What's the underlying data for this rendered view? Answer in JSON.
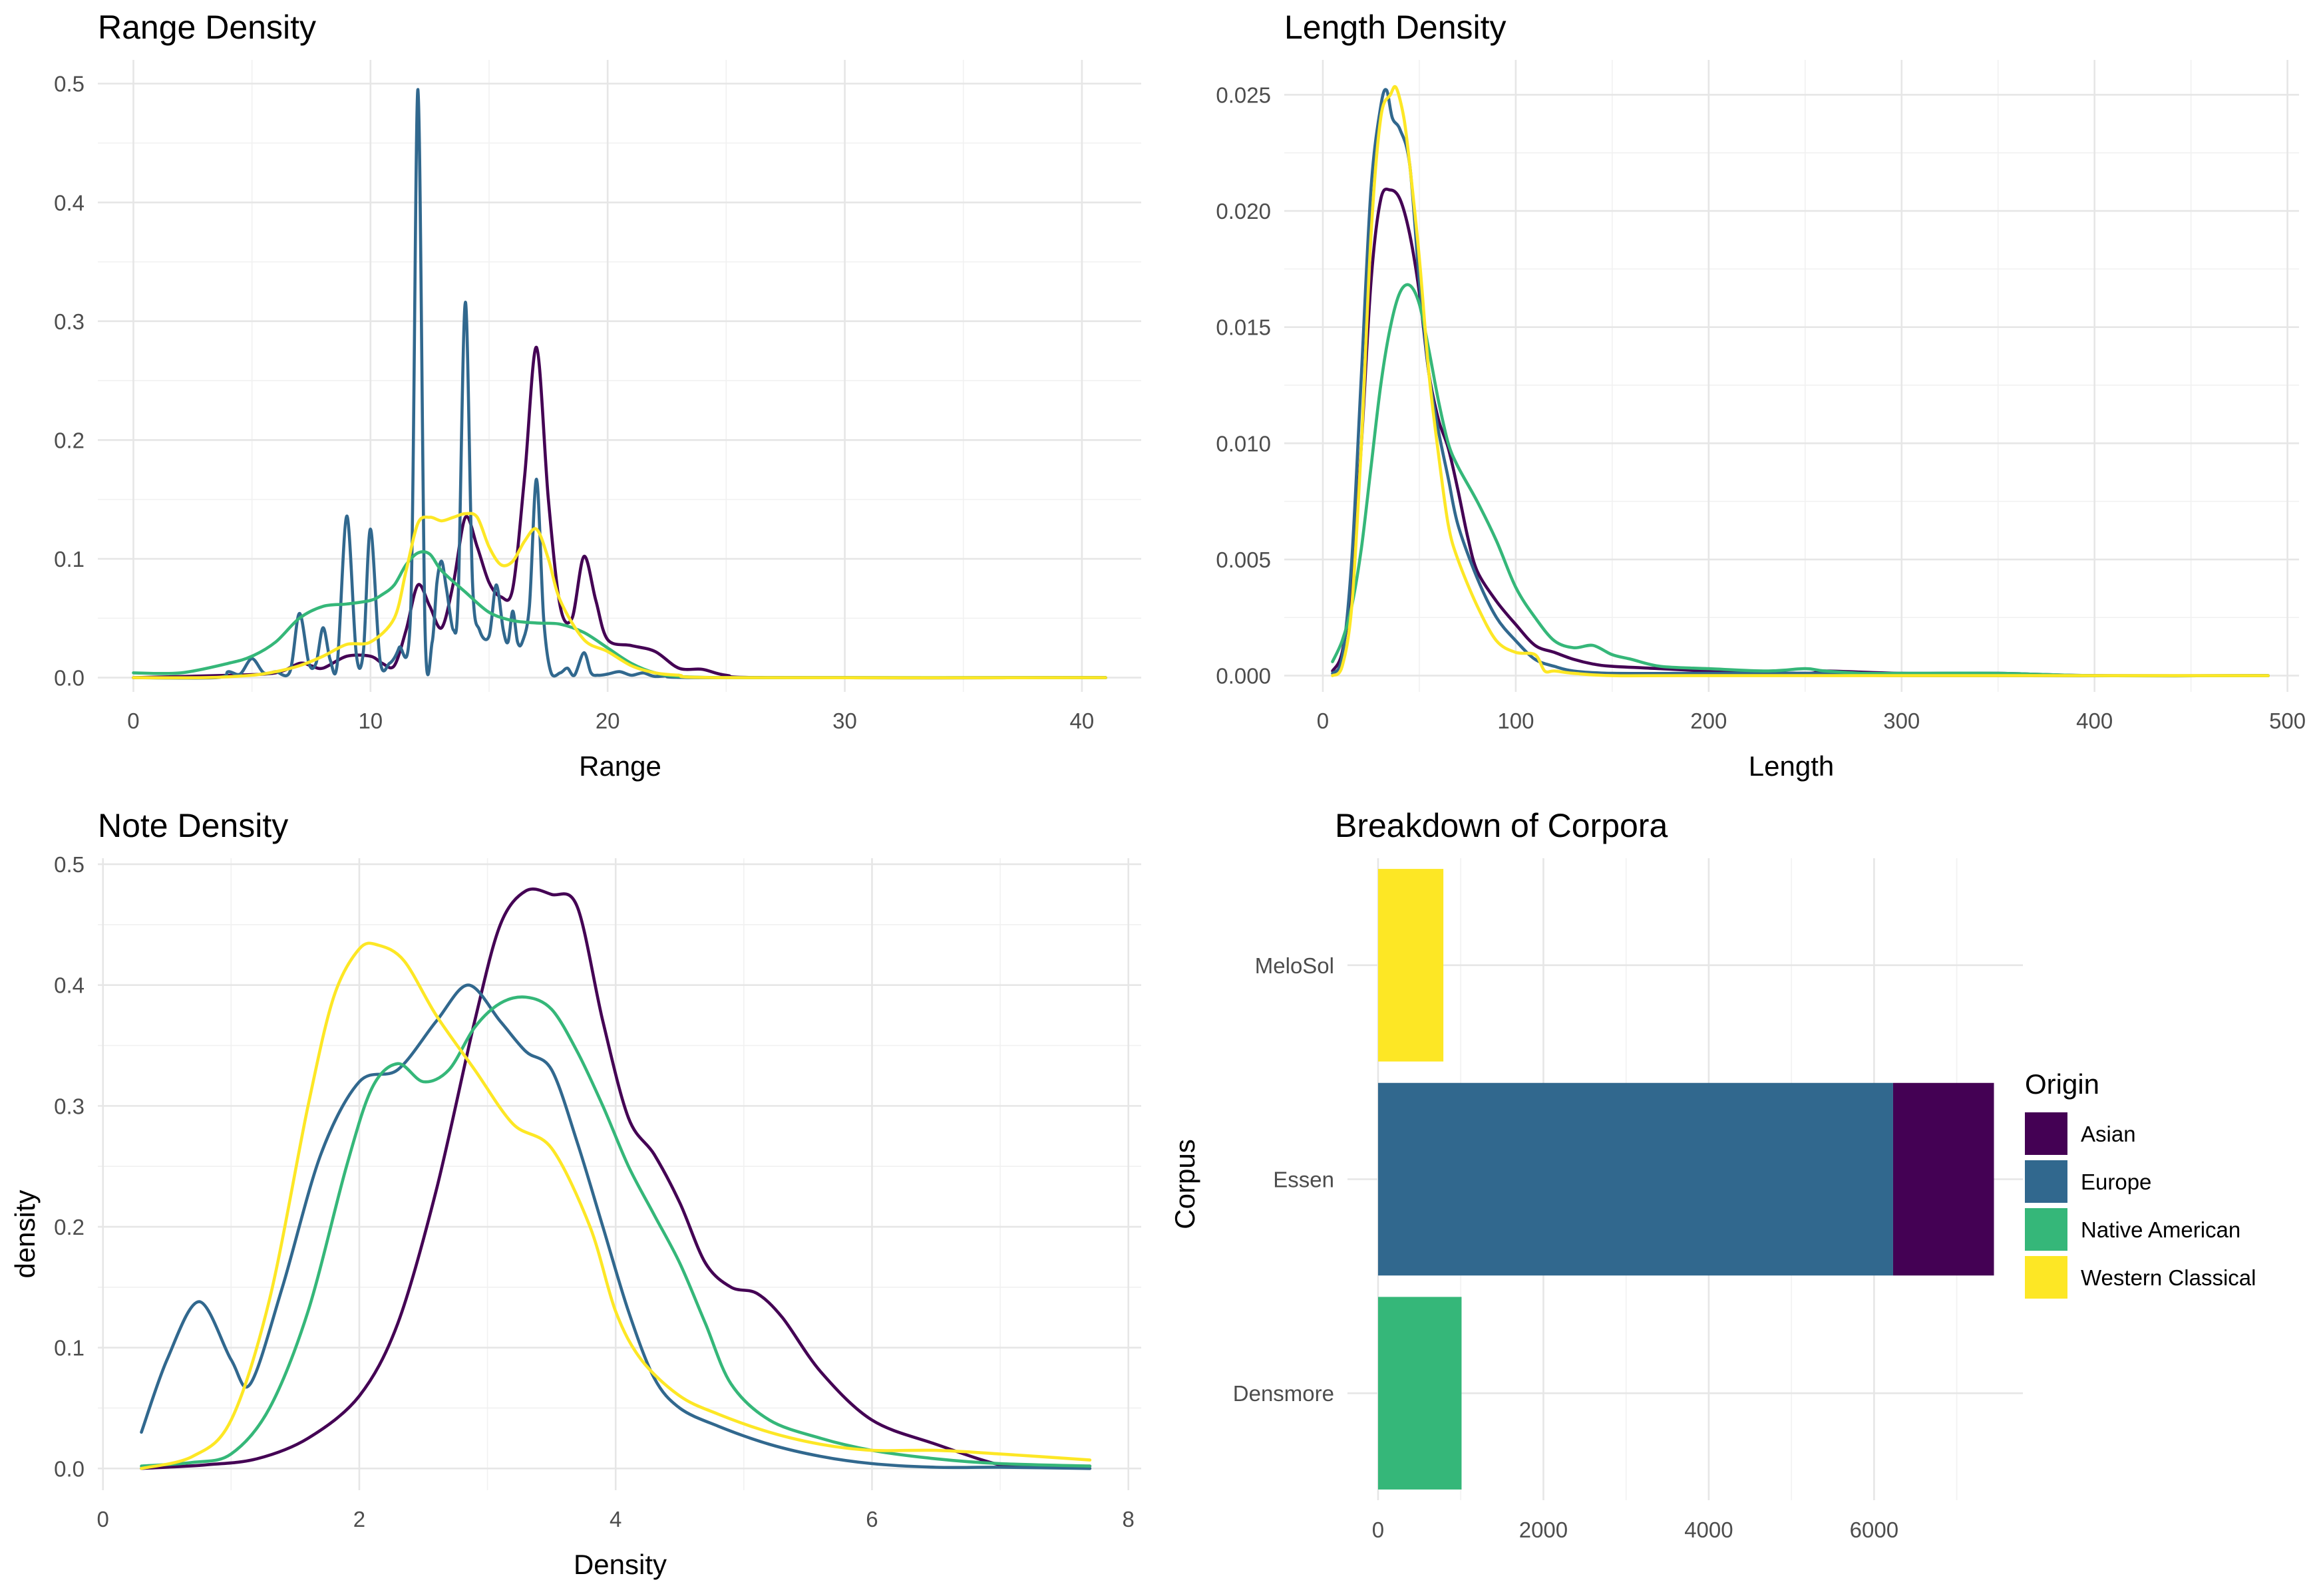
{
  "colors": {
    "Asian": "#440154",
    "Europe": "#31688e",
    "Native American": "#35b779",
    "Western Classical": "#fde725"
  },
  "chart_data": [
    {
      "type": "line",
      "title": "Range Density",
      "xlabel": "Range",
      "ylabel": "",
      "xlim": [
        -1.5,
        42.5
      ],
      "ylim": [
        -0.012,
        0.52
      ],
      "xticks": [
        0,
        10,
        20,
        30,
        40
      ],
      "yticks": [
        0.0,
        0.1,
        0.2,
        0.3,
        0.4,
        0.5
      ],
      "xtick_labels": [
        "0",
        "10",
        "20",
        "30",
        "40"
      ],
      "ytick_labels": [
        "0.0",
        "0.1",
        "0.2",
        "0.3",
        "0.4",
        "0.5"
      ],
      "grid": true,
      "series": [
        {
          "name": "Asian",
          "x": [
            0,
            4,
            6,
            7,
            7.5,
            8,
            9,
            10,
            10.5,
            11,
            11.5,
            12,
            12.5,
            13,
            13.5,
            14,
            14.5,
            15,
            15.5,
            16,
            16.5,
            17,
            17.5,
            18,
            18.5,
            19,
            19.5,
            20,
            21,
            22,
            23,
            24,
            25,
            27,
            41
          ],
          "y": [
            0,
            0.002,
            0.004,
            0.012,
            0.01,
            0.008,
            0.018,
            0.018,
            0.012,
            0.01,
            0.04,
            0.078,
            0.06,
            0.042,
            0.08,
            0.135,
            0.11,
            0.08,
            0.068,
            0.075,
            0.17,
            0.278,
            0.15,
            0.06,
            0.05,
            0.102,
            0.065,
            0.032,
            0.027,
            0.022,
            0.008,
            0.007,
            0.002,
            0,
            0
          ]
        },
        {
          "name": "Europe",
          "x": [
            0,
            3.5,
            4,
            4.5,
            5,
            5.5,
            6,
            6.6,
            7,
            7.4,
            7.7,
            8,
            8.3,
            8.6,
            9,
            9.4,
            9.7,
            10,
            10.4,
            10.8,
            11.2,
            11.7,
            12,
            12.3,
            12.6,
            12.8,
            13,
            13.2,
            13.5,
            13.7,
            14,
            14.3,
            14.6,
            15,
            15.3,
            15.6,
            15.8,
            16,
            16.2,
            16.4,
            16.7,
            17,
            17.3,
            17.6,
            18,
            18.3,
            18.6,
            19,
            19.3,
            19.6,
            20,
            20.5,
            21,
            21.5,
            22,
            23,
            24,
            41
          ],
          "y": [
            0,
            0,
            0.005,
            0.003,
            0.016,
            0.004,
            0.005,
            0.005,
            0.054,
            0.012,
            0.012,
            0.042,
            0.015,
            0.012,
            0.136,
            0.02,
            0.022,
            0.125,
            0.015,
            0.012,
            0.025,
            0.06,
            0.495,
            0.04,
            0.03,
            0.08,
            0.098,
            0.075,
            0.04,
            0.07,
            0.316,
            0.08,
            0.04,
            0.035,
            0.078,
            0.04,
            0.03,
            0.056,
            0.03,
            0.03,
            0.06,
            0.167,
            0.05,
            0.005,
            0.004,
            0.008,
            0.002,
            0.021,
            0.004,
            0.002,
            0.003,
            0.005,
            0.002,
            0.004,
            0.001,
            0.002,
            0,
            0
          ]
        },
        {
          "name": "Native American",
          "x": [
            0,
            2,
            4,
            5,
            6,
            7,
            8,
            9,
            10,
            10.5,
            11,
            11.5,
            12,
            12.5,
            13,
            14,
            15,
            16,
            17,
            18,
            19,
            20,
            21,
            22,
            23,
            25,
            30,
            41
          ],
          "y": [
            0.004,
            0.004,
            0.012,
            0.018,
            0.03,
            0.05,
            0.06,
            0.062,
            0.065,
            0.07,
            0.078,
            0.095,
            0.105,
            0.104,
            0.09,
            0.072,
            0.055,
            0.048,
            0.046,
            0.045,
            0.038,
            0.025,
            0.012,
            0.004,
            0.001,
            0,
            0,
            0
          ]
        },
        {
          "name": "Western Classical",
          "x": [
            0,
            3,
            5,
            6,
            7,
            8,
            9,
            10,
            11,
            11.5,
            12,
            12.5,
            13,
            13.5,
            14,
            14.5,
            15,
            15.5,
            16,
            16.5,
            17,
            17.5,
            18,
            19,
            20,
            21,
            22,
            23,
            25,
            41
          ],
          "y": [
            0,
            0,
            0.002,
            0.005,
            0.01,
            0.018,
            0.028,
            0.03,
            0.05,
            0.09,
            0.13,
            0.135,
            0.132,
            0.135,
            0.138,
            0.135,
            0.11,
            0.095,
            0.098,
            0.115,
            0.125,
            0.1,
            0.065,
            0.032,
            0.022,
            0.01,
            0.004,
            0.002,
            0,
            0
          ]
        }
      ]
    },
    {
      "type": "line",
      "title": "Length Density",
      "xlabel": "Length",
      "ylabel": "",
      "xlim": [
        -20,
        506
      ],
      "ylim": [
        -0.0007,
        0.0265
      ],
      "xticks": [
        0,
        100,
        200,
        300,
        400,
        500
      ],
      "yticks": [
        0.0,
        0.005,
        0.01,
        0.015,
        0.02,
        0.025
      ],
      "xtick_labels": [
        "0",
        "100",
        "200",
        "300",
        "400",
        "500"
      ],
      "ytick_labels": [
        "0.000",
        "0.005",
        "0.010",
        "0.015",
        "0.020",
        "0.025"
      ],
      "grid": true,
      "series": [
        {
          "name": "Asian",
          "x": [
            5,
            10,
            15,
            20,
            25,
            30,
            35,
            40,
            45,
            50,
            55,
            60,
            65,
            70,
            75,
            80,
            90,
            100,
            110,
            120,
            130,
            140,
            150,
            175,
            200,
            250,
            260,
            300,
            350,
            400,
            490
          ],
          "y": [
            0.0002,
            0.001,
            0.004,
            0.01,
            0.017,
            0.0205,
            0.0209,
            0.0205,
            0.019,
            0.0165,
            0.013,
            0.011,
            0.0098,
            0.008,
            0.006,
            0.0045,
            0.0032,
            0.0022,
            0.0013,
            0.001,
            0.0007,
            0.0005,
            0.0004,
            0.0003,
            0.0002,
            0.0001,
            0.0002,
            0.0001,
            0.0001,
            0,
            0
          ]
        },
        {
          "name": "Europe",
          "x": [
            5,
            10,
            15,
            20,
            25,
            30,
            33,
            36,
            40,
            45,
            50,
            55,
            60,
            65,
            70,
            80,
            90,
            100,
            110,
            120,
            130,
            150,
            200,
            250,
            300,
            490
          ],
          "y": [
            0.0001,
            0.0008,
            0.005,
            0.013,
            0.021,
            0.0245,
            0.0252,
            0.024,
            0.0235,
            0.022,
            0.017,
            0.013,
            0.0105,
            0.0085,
            0.0065,
            0.0042,
            0.0025,
            0.0015,
            0.0007,
            0.0004,
            0.0002,
            0.0001,
            0.0001,
            0.0001,
            0,
            0
          ]
        },
        {
          "name": "Native American",
          "x": [
            5,
            10,
            15,
            20,
            25,
            30,
            35,
            40,
            45,
            50,
            55,
            60,
            65,
            70,
            80,
            90,
            100,
            110,
            120,
            130,
            140,
            150,
            160,
            175,
            200,
            230,
            250,
            260,
            280,
            300,
            350,
            400,
            490
          ],
          "y": [
            0.0006,
            0.0015,
            0.003,
            0.0055,
            0.009,
            0.0125,
            0.015,
            0.0165,
            0.0168,
            0.016,
            0.014,
            0.0118,
            0.01,
            0.009,
            0.0075,
            0.0058,
            0.0038,
            0.0025,
            0.0015,
            0.0012,
            0.0013,
            0.0009,
            0.0007,
            0.0004,
            0.0003,
            0.0002,
            0.0003,
            0.0002,
            0.0001,
            0.0001,
            0.0001,
            0,
            0
          ]
        },
        {
          "name": "Western Classical",
          "x": [
            5,
            10,
            15,
            20,
            25,
            30,
            35,
            38,
            42,
            45,
            50,
            55,
            60,
            65,
            70,
            80,
            90,
            100,
            110,
            115,
            120,
            130,
            150,
            200,
            490
          ],
          "y": [
            0,
            0.0004,
            0.003,
            0.01,
            0.019,
            0.024,
            0.025,
            0.0253,
            0.024,
            0.022,
            0.018,
            0.013,
            0.0095,
            0.0065,
            0.005,
            0.003,
            0.0015,
            0.001,
            0.0009,
            0.0002,
            0.0002,
            0.0001,
            0,
            0,
            0
          ]
        }
      ]
    },
    {
      "type": "line",
      "title": "Note Density",
      "xlabel": "Density",
      "ylabel": "density",
      "xlim": [
        -0.04,
        8.1
      ],
      "ylim": [
        -0.018,
        0.505
      ],
      "xticks": [
        0,
        2,
        4,
        6,
        8
      ],
      "yticks": [
        0.0,
        0.1,
        0.2,
        0.3,
        0.4,
        0.5
      ],
      "xtick_labels": [
        "0",
        "2",
        "4",
        "6",
        "8"
      ],
      "ytick_labels": [
        "0.0",
        "0.1",
        "0.2",
        "0.3",
        "0.4",
        "0.5"
      ],
      "grid": true,
      "series": [
        {
          "name": "Asian",
          "x": [
            0.3,
            0.8,
            1.2,
            1.6,
            2.0,
            2.3,
            2.6,
            2.9,
            3.1,
            3.3,
            3.5,
            3.7,
            3.9,
            4.1,
            4.3,
            4.5,
            4.7,
            4.9,
            5.1,
            5.3,
            5.6,
            6.0,
            6.5,
            7.0,
            7.3,
            7.7
          ],
          "y": [
            0,
            0.003,
            0.008,
            0.025,
            0.06,
            0.12,
            0.23,
            0.37,
            0.45,
            0.478,
            0.475,
            0.465,
            0.37,
            0.29,
            0.26,
            0.22,
            0.17,
            0.15,
            0.145,
            0.125,
            0.08,
            0.04,
            0.02,
            0.003,
            0.002,
            0.002
          ]
        },
        {
          "name": "Europe",
          "x": [
            0.3,
            0.5,
            0.75,
            1.0,
            1.15,
            1.4,
            1.7,
            2.0,
            2.3,
            2.6,
            2.85,
            3.1,
            3.3,
            3.5,
            3.7,
            3.9,
            4.1,
            4.3,
            4.5,
            4.8,
            5.2,
            5.6,
            6.0,
            6.5,
            7.0,
            7.7
          ],
          "y": [
            0.03,
            0.09,
            0.138,
            0.09,
            0.07,
            0.15,
            0.26,
            0.32,
            0.33,
            0.37,
            0.4,
            0.37,
            0.345,
            0.33,
            0.27,
            0.2,
            0.13,
            0.075,
            0.05,
            0.035,
            0.02,
            0.01,
            0.004,
            0.001,
            0.001,
            0
          ]
        },
        {
          "name": "Native American",
          "x": [
            0.3,
            0.7,
            1.0,
            1.3,
            1.6,
            1.9,
            2.1,
            2.3,
            2.5,
            2.7,
            2.9,
            3.1,
            3.3,
            3.5,
            3.7,
            3.9,
            4.1,
            4.3,
            4.5,
            4.7,
            4.9,
            5.2,
            5.6,
            6.0,
            6.5,
            7.0,
            7.7
          ],
          "y": [
            0.002,
            0.005,
            0.012,
            0.05,
            0.13,
            0.25,
            0.315,
            0.335,
            0.32,
            0.33,
            0.365,
            0.385,
            0.39,
            0.38,
            0.345,
            0.3,
            0.25,
            0.21,
            0.17,
            0.12,
            0.07,
            0.04,
            0.025,
            0.015,
            0.008,
            0.004,
            0.002
          ]
        },
        {
          "name": "Western Classical",
          "x": [
            0.3,
            0.7,
            1.0,
            1.3,
            1.6,
            1.8,
            2.0,
            2.15,
            2.35,
            2.6,
            2.9,
            3.2,
            3.5,
            3.8,
            4.0,
            4.2,
            4.5,
            4.8,
            5.2,
            5.6,
            6.0,
            6.5,
            7.0,
            7.7
          ],
          "y": [
            0,
            0.01,
            0.04,
            0.14,
            0.3,
            0.39,
            0.43,
            0.433,
            0.42,
            0.375,
            0.33,
            0.285,
            0.265,
            0.2,
            0.13,
            0.09,
            0.06,
            0.045,
            0.03,
            0.02,
            0.015,
            0.015,
            0.012,
            0.007
          ]
        }
      ]
    },
    {
      "type": "bar",
      "orientation": "horizontal",
      "stacked": true,
      "title": "Breakdown of Corpora",
      "xlabel": "",
      "ylabel": "Corpus",
      "categories": [
        "MeloSol",
        "Essen",
        "Densmore"
      ],
      "xlim": [
        -370,
        7800
      ],
      "xticks": [
        0,
        2000,
        4000,
        6000
      ],
      "xtick_labels": [
        "0",
        "2000",
        "4000",
        "6000"
      ],
      "grid": true,
      "legend": {
        "title": "Origin",
        "position": "right",
        "entries": [
          "Asian",
          "Europe",
          "Native American",
          "Western Classical"
        ]
      },
      "series": [
        {
          "name": "Asian",
          "values": [
            0,
            1220,
            0
          ]
        },
        {
          "name": "Europe",
          "values": [
            0,
            6230,
            0
          ]
        },
        {
          "name": "Native American",
          "values": [
            0,
            0,
            1010
          ]
        },
        {
          "name": "Western Classical",
          "values": [
            790,
            0,
            0
          ]
        }
      ]
    }
  ]
}
